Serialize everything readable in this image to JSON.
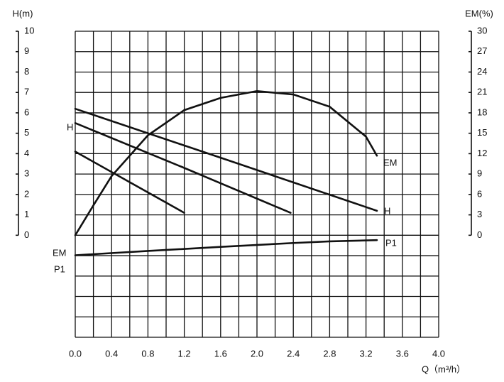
{
  "chart_data": {
    "type": "line",
    "title_left": "H(m)",
    "title_right": "EM(%)",
    "x_label": "Q（m³/h）",
    "xlim": [
      0,
      4.0
    ],
    "xticks": [
      {
        "value": 0,
        "label": "0.0"
      },
      0.4,
      0.8,
      1.2,
      1.6,
      {
        "value": 2,
        "label": "2.0"
      },
      2.4,
      2.8,
      3.2,
      3.6,
      {
        "value": 4,
        "label": "4.0"
      }
    ],
    "xminor": [
      0.2,
      0.6,
      1.0,
      1.4,
      1.8,
      2.2,
      2.6,
      3.0,
      3.4,
      3.8
    ],
    "ylim": [
      -5,
      10
    ],
    "yticks": [
      0,
      1,
      2,
      3,
      4,
      5,
      6,
      7,
      8,
      9,
      10
    ],
    "yminor": [
      -5,
      -4,
      -3,
      -2,
      -1
    ],
    "y2lim": [
      -15,
      30
    ],
    "y2ticks": [
      0,
      3,
      6,
      9,
      12,
      15,
      18,
      21,
      24,
      27,
      30
    ],
    "grid": true,
    "series": [
      {
        "color": "#111111",
        "x": [
          0,
          1.6,
          3.32
        ],
        "values": [
          6.2,
          3.8,
          1.2
        ]
      },
      {
        "color": "#111111",
        "x": [
          0,
          1.2,
          2.37
        ],
        "values": [
          5.5,
          3.3,
          1.1
        ]
      },
      {
        "color": "#111111",
        "x": [
          0,
          0.6,
          1.2
        ],
        "values": [
          4.1,
          2.6,
          1.1
        ]
      },
      {
        "color": "#111111",
        "axis": "y2",
        "x": [
          0,
          0.2,
          0.4,
          0.8,
          1.2,
          1.6,
          2.0,
          2.4,
          2.8,
          3.2,
          3.32
        ],
        "values": [
          0,
          4.4,
          8.7,
          14.7,
          18.4,
          20.2,
          21.2,
          20.7,
          18.9,
          14.5,
          11.7
        ]
      },
      {
        "color": "#111111",
        "x": [
          0,
          0.8,
          1.6,
          2.4,
          2.8,
          3.32
        ],
        "values": [
          -0.98,
          -0.77,
          -0.57,
          -0.38,
          -0.3,
          -0.24
        ]
      }
    ],
    "annotations": [
      "H",
      "EM",
      "H",
      "P1",
      "EM",
      "P1"
    ]
  }
}
